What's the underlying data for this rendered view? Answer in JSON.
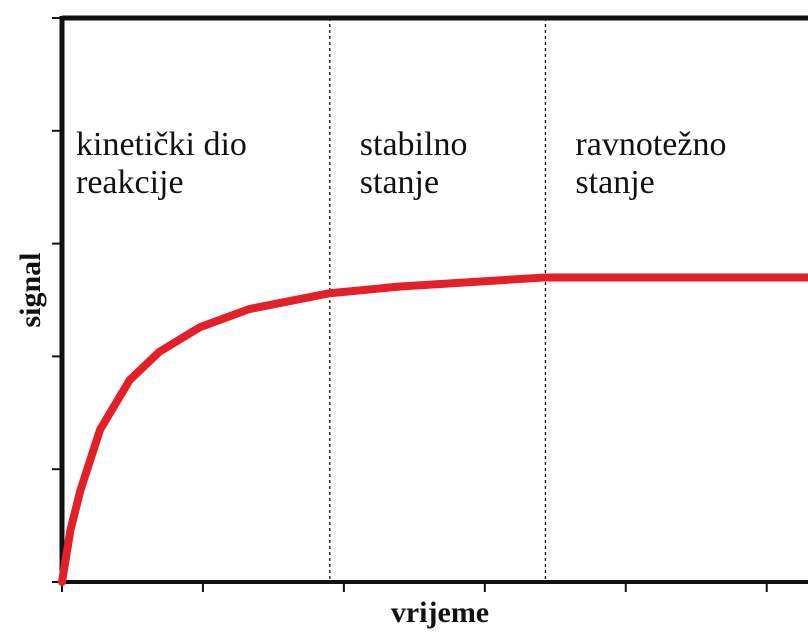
{
  "chart_data": {
    "type": "line",
    "x_label": "vrijeme",
    "y_label": "signal",
    "x": [
      0,
      0.06,
      0.13,
      0.27,
      0.48,
      0.69,
      0.98,
      1.33,
      1.9,
      2.4,
      3.43,
      5.29
    ],
    "series": [
      {
        "color": "#e3202a",
        "values": [
          0,
          0.46,
          0.81,
          1.35,
          1.79,
          2.04,
          2.26,
          2.42,
          2.56,
          2.62,
          2.7,
          2.7
        ]
      }
    ],
    "xlim": [
      0,
      5.3
    ],
    "ylim": [
      0,
      5
    ],
    "xticks": [
      0,
      1,
      2,
      3,
      4,
      5
    ],
    "yticks": [
      0,
      1,
      2,
      3,
      4,
      5
    ],
    "dividers": [
      1.9,
      3.43
    ],
    "regions": [
      {
        "lines": [
          "kinetički dio",
          "reakcije"
        ]
      },
      {
        "lines": [
          "stabilno",
          "stanje"
        ]
      },
      {
        "lines": [
          "ravnotežno",
          "stanje"
        ]
      }
    ]
  }
}
